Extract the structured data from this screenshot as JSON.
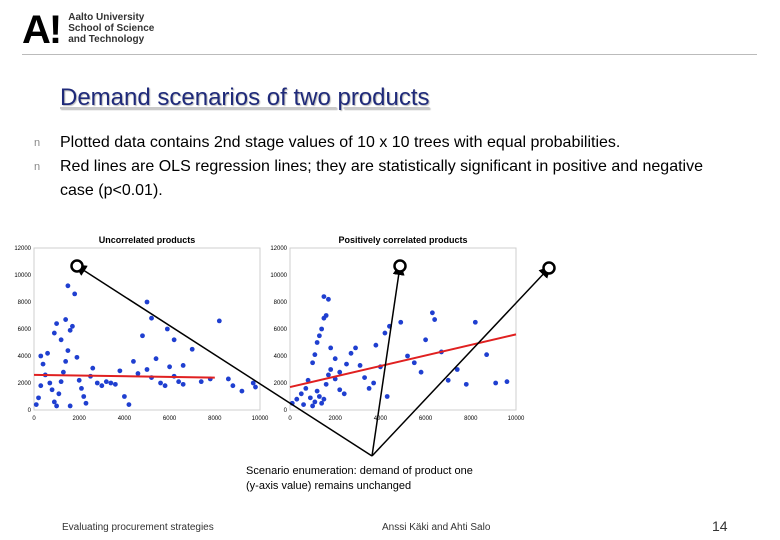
{
  "logo": {
    "mark": "A",
    "mark_bang": "!",
    "lines": [
      "Aalto University",
      "School of Science",
      "and Technology"
    ]
  },
  "title": "Demand scenarios of two products",
  "bullets": [
    {
      "marker": "n",
      "text": "Plotted data contains 2nd stage values of 10 x 10 trees with equal probabilities."
    },
    {
      "marker": "n",
      "text": "Red lines are OLS regression lines; they are statistically significant in positive and negative case (p<0.01)."
    }
  ],
  "annotation": {
    "line1": "Scenario enumeration: demand of product one",
    "line2": "(y-axis value) remains unchanged"
  },
  "footer": {
    "left": "Evaluating procurement strategies",
    "center": "Anssi Käki and Ahti Salo",
    "page": "14"
  },
  "colors": {
    "points": "#1f3fd0",
    "regression": "#e02020",
    "title": "#1f2a7a"
  },
  "chart_data": [
    {
      "type": "scatter",
      "title": "Uncorrelated products",
      "xlim": [
        0,
        10000
      ],
      "ylim": [
        0,
        12000
      ],
      "xticks": [
        "0",
        "2000",
        "4000",
        "6000",
        "8000",
        "10000"
      ],
      "yticks": [
        "0",
        "2000",
        "4000",
        "6000",
        "8000",
        "10000",
        "12000"
      ],
      "regression": [
        [
          0,
          2600
        ],
        [
          8000,
          2400
        ]
      ],
      "points": [
        [
          100,
          400
        ],
        [
          200,
          900
        ],
        [
          300,
          1800
        ],
        [
          500,
          2600
        ],
        [
          400,
          3400
        ],
        [
          300,
          4000
        ],
        [
          600,
          4200
        ],
        [
          700,
          2000
        ],
        [
          800,
          1500
        ],
        [
          900,
          600
        ],
        [
          1000,
          300
        ],
        [
          1100,
          1200
        ],
        [
          1200,
          2100
        ],
        [
          1300,
          2800
        ],
        [
          1400,
          3600
        ],
        [
          1500,
          4400
        ],
        [
          1200,
          5200
        ],
        [
          900,
          5700
        ],
        [
          1000,
          6400
        ],
        [
          1400,
          6700
        ],
        [
          1600,
          5900
        ],
        [
          1700,
          6200
        ],
        [
          1500,
          9200
        ],
        [
          1800,
          8600
        ],
        [
          1900,
          3900
        ],
        [
          2000,
          2200
        ],
        [
          2100,
          1600
        ],
        [
          2200,
          1000
        ],
        [
          2300,
          500
        ],
        [
          1600,
          300
        ],
        [
          2500,
          2500
        ],
        [
          2600,
          3100
        ],
        [
          2800,
          2000
        ],
        [
          3000,
          1800
        ],
        [
          3200,
          2100
        ],
        [
          3400,
          2000
        ],
        [
          3600,
          1900
        ],
        [
          3800,
          2900
        ],
        [
          4000,
          1000
        ],
        [
          4200,
          400
        ],
        [
          4400,
          3600
        ],
        [
          4600,
          2700
        ],
        [
          4800,
          5500
        ],
        [
          5000,
          3000
        ],
        [
          5200,
          2400
        ],
        [
          5400,
          3800
        ],
        [
          5600,
          2000
        ],
        [
          5800,
          1800
        ],
        [
          6000,
          3200
        ],
        [
          6200,
          2500
        ],
        [
          6400,
          2100
        ],
        [
          6600,
          1900
        ],
        [
          5200,
          6800
        ],
        [
          5000,
          8000
        ],
        [
          5900,
          6000
        ],
        [
          6200,
          5200
        ],
        [
          6600,
          3300
        ],
        [
          7000,
          4500
        ],
        [
          7400,
          2100
        ],
        [
          7800,
          2300
        ],
        [
          8200,
          6600
        ],
        [
          8600,
          2300
        ],
        [
          8800,
          1800
        ],
        [
          9200,
          1400
        ],
        [
          9700,
          2000
        ],
        [
          9800,
          1700
        ]
      ]
    },
    {
      "type": "scatter",
      "title": "Positively correlated products",
      "xlim": [
        0,
        10000
      ],
      "ylim": [
        0,
        12000
      ],
      "xticks": [
        "0",
        "2000",
        "4000",
        "6000",
        "8000",
        "10000"
      ],
      "yticks": [
        "0",
        "2000",
        "4000",
        "6000",
        "8000",
        "10000",
        "12000"
      ],
      "regression": [
        [
          0,
          1700
        ],
        [
          10000,
          5600
        ]
      ],
      "points": [
        [
          100,
          500
        ],
        [
          300,
          800
        ],
        [
          500,
          1200
        ],
        [
          600,
          400
        ],
        [
          700,
          1600
        ],
        [
          800,
          2200
        ],
        [
          900,
          900
        ],
        [
          1000,
          300
        ],
        [
          1100,
          600
        ],
        [
          1200,
          1400
        ],
        [
          1300,
          1000
        ],
        [
          1400,
          500
        ],
        [
          1500,
          800
        ],
        [
          1600,
          1900
        ],
        [
          1700,
          2600
        ],
        [
          1800,
          3000
        ],
        [
          2000,
          2300
        ],
        [
          2200,
          1500
        ],
        [
          2400,
          1200
        ],
        [
          1000,
          3500
        ],
        [
          1100,
          4100
        ],
        [
          1200,
          5000
        ],
        [
          1300,
          5500
        ],
        [
          1400,
          6000
        ],
        [
          1500,
          6800
        ],
        [
          1600,
          7000
        ],
        [
          1500,
          8400
        ],
        [
          1700,
          8200
        ],
        [
          1800,
          4600
        ],
        [
          2000,
          3800
        ],
        [
          2200,
          2800
        ],
        [
          2500,
          3400
        ],
        [
          2700,
          4200
        ],
        [
          2900,
          4600
        ],
        [
          3100,
          3300
        ],
        [
          3300,
          2400
        ],
        [
          3500,
          1600
        ],
        [
          3700,
          2000
        ],
        [
          4000,
          3200
        ],
        [
          4300,
          1000
        ],
        [
          3800,
          4800
        ],
        [
          4200,
          5700
        ],
        [
          4400,
          6200
        ],
        [
          4900,
          6500
        ],
        [
          5200,
          4000
        ],
        [
          5500,
          3500
        ],
        [
          5800,
          2800
        ],
        [
          6000,
          5200
        ],
        [
          6400,
          6700
        ],
        [
          6700,
          4300
        ],
        [
          7000,
          2200
        ],
        [
          7400,
          3000
        ],
        [
          7800,
          1900
        ],
        [
          8200,
          6500
        ],
        [
          8700,
          4100
        ],
        [
          9100,
          2000
        ],
        [
          9600,
          2100
        ],
        [
          6300,
          7200
        ]
      ]
    }
  ]
}
